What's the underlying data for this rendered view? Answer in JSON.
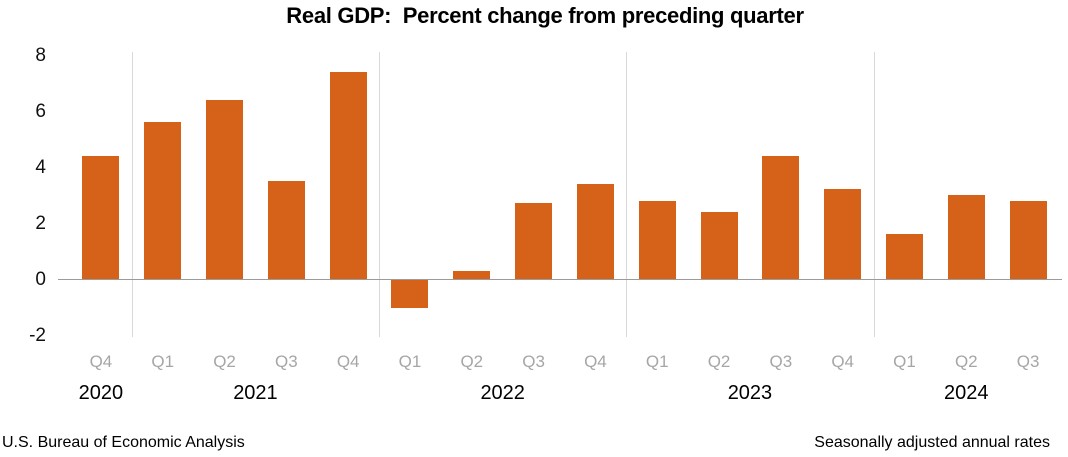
{
  "title": "Real GDP:  Percent change from preceding quarter",
  "footer": {
    "left": "U.S. Bureau of Economic Analysis",
    "right": "Seasonally adjusted annual rates"
  },
  "colors": {
    "bar": "#D6621A",
    "zero_axis": "#9B9B9B",
    "year_separator": "#D9D9D9",
    "quarter_label": "#A6A6A6",
    "year_label": "#000000",
    "tick_label": "#111111"
  },
  "chart_data": {
    "type": "bar",
    "title": "Real GDP:  Percent change from preceding quarter",
    "xlabel": "",
    "ylabel": "",
    "ylim": [
      -2,
      8
    ],
    "yticks": [
      8,
      6,
      4,
      2,
      0,
      -2
    ],
    "grid": "vertical-year-separators-only",
    "legend": "none",
    "categories": [
      "Q4",
      "Q1",
      "Q2",
      "Q3",
      "Q4",
      "Q1",
      "Q2",
      "Q3",
      "Q4",
      "Q1",
      "Q2",
      "Q3",
      "Q4",
      "Q1",
      "Q2",
      "Q3"
    ],
    "values": [
      4.4,
      5.6,
      6.4,
      3.5,
      7.4,
      -1.0,
      0.3,
      2.7,
      3.4,
      2.8,
      2.4,
      4.4,
      3.2,
      1.6,
      3.0,
      2.8
    ],
    "year_groups": [
      {
        "year": "2020",
        "count": 1
      },
      {
        "year": "2021",
        "count": 4
      },
      {
        "year": "2022",
        "count": 4
      },
      {
        "year": "2023",
        "count": 4
      },
      {
        "year": "2024",
        "count": 3
      }
    ],
    "notes": [
      "Seasonally adjusted annual rates"
    ],
    "source": "U.S. Bureau of Economic Analysis"
  }
}
